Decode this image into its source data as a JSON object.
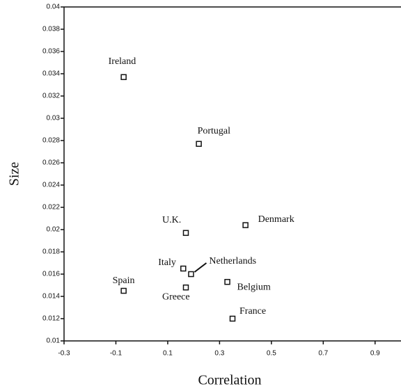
{
  "chart_data": {
    "type": "scatter",
    "x_label": "Correlation",
    "y_label": "Size",
    "series": [
      {
        "color": "#111111",
        "labels": [
          "Ireland",
          "Portugal",
          "U.K.",
          "Denmark",
          "Italy",
          "Netherlands",
          "Spain",
          "Greece",
          "Belgium",
          "France"
        ],
        "x": [
          -0.07,
          0.22,
          0.17,
          0.4,
          0.16,
          0.19,
          -0.07,
          0.17,
          0.33,
          0.35
        ],
        "values": [
          0.0337,
          0.0277,
          0.0197,
          0.0204,
          0.0165,
          0.016,
          0.0145,
          0.0148,
          0.0153,
          0.012
        ]
      }
    ],
    "xlim": [
      -0.3,
      1.0
    ],
    "xticks": [
      -0.3,
      -0.1,
      0.1,
      0.3,
      0.5,
      0.7,
      0.9
    ],
    "ylim": [
      0.01,
      0.04
    ],
    "yticks": [
      0.01,
      0.012,
      0.014,
      0.016,
      0.018,
      0.02,
      0.022,
      0.024,
      0.026,
      0.028,
      0.03,
      0.032,
      0.034,
      0.036,
      0.038,
      0.04
    ],
    "grid": false
  }
}
